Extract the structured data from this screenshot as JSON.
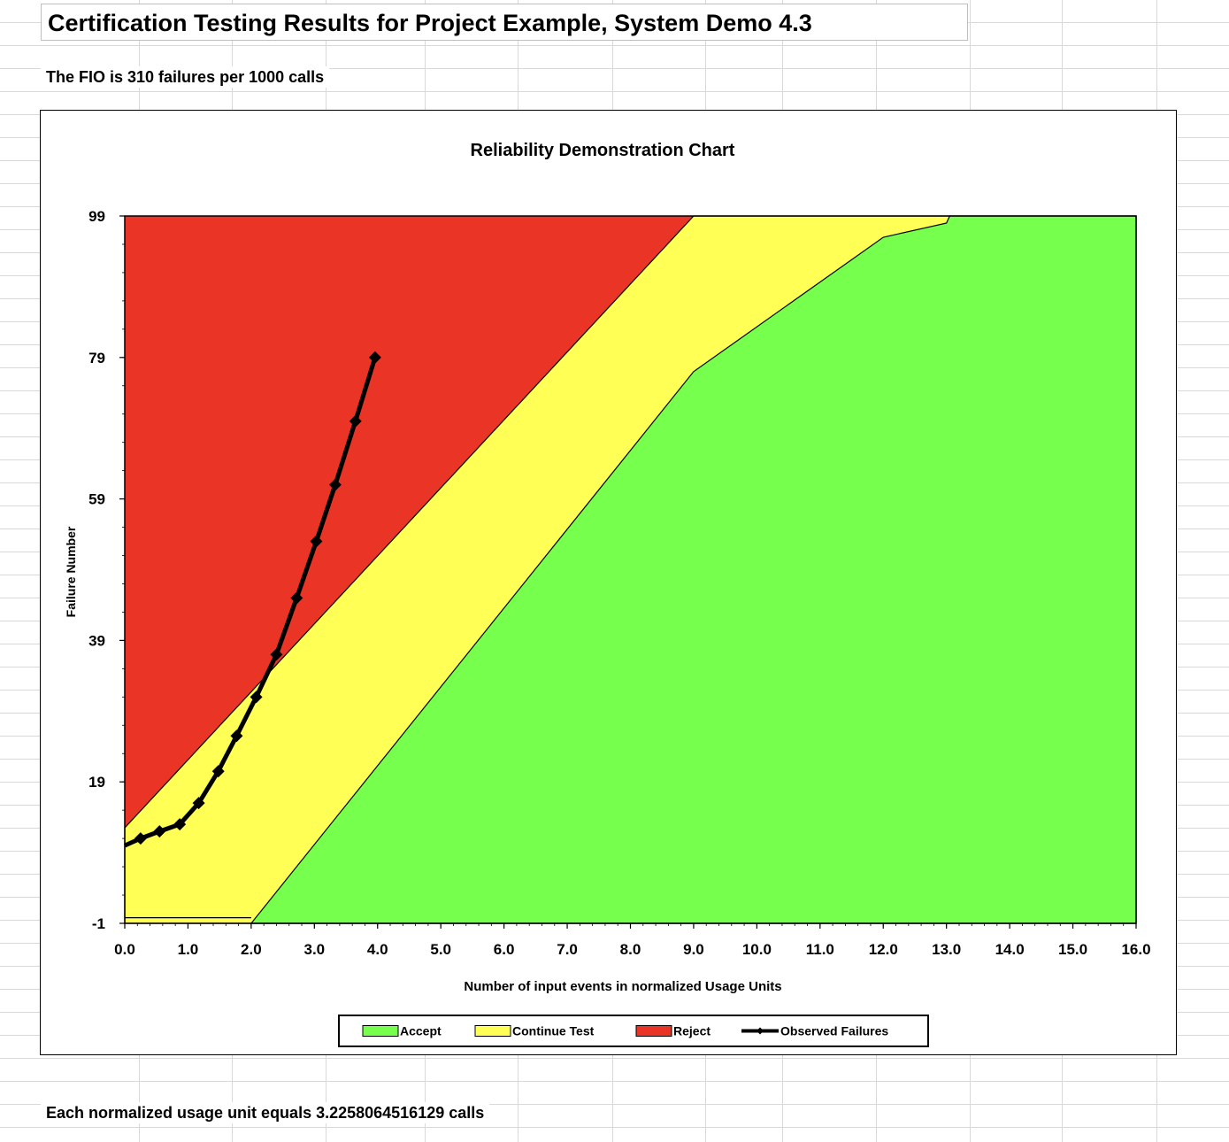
{
  "sheet": {
    "title": "Certification Testing Results for Project Example, System Demo 4.3",
    "fio_text": "The FIO is 310 failures per 1000 calls",
    "footer_text": "Each normalized usage unit equals 3.2258064516129 calls"
  },
  "chart_data": {
    "type": "area",
    "title": "Reliability Demonstration Chart",
    "xlabel": "Number of input events in normalized Usage Units",
    "ylabel": "Failure Number",
    "xlim": [
      0,
      16
    ],
    "ylim": [
      -1,
      99
    ],
    "x_ticks": [
      "0.0",
      "1.0",
      "2.0",
      "3.0",
      "4.0",
      "5.0",
      "6.0",
      "7.0",
      "8.0",
      "9.0",
      "10.0",
      "11.0",
      "12.0",
      "13.0",
      "14.0",
      "15.0",
      "16.0"
    ],
    "y_ticks": [
      "-1",
      "19",
      "39",
      "59",
      "79",
      "99"
    ],
    "legend_position": "bottom",
    "grid": false,
    "regions": [
      {
        "name": "Accept",
        "color": "#77ff4d",
        "boundary": [
          [
            2.0,
            -1
          ],
          [
            9.0,
            77
          ],
          [
            12.0,
            96
          ],
          [
            13.0,
            98
          ],
          [
            13.05,
            99
          ]
        ]
      },
      {
        "name": "Continue Test",
        "color": "#ffff55",
        "boundary": [
          [
            0.0,
            12.5
          ],
          [
            9.0,
            99
          ]
        ]
      },
      {
        "name": "Reject",
        "color": "#ea3526"
      }
    ],
    "series": [
      {
        "name": "Observed Failures",
        "color": "#000000",
        "x": [
          0.0,
          0.25,
          0.55,
          0.87,
          1.17,
          1.48,
          1.77,
          2.08,
          2.4,
          2.72,
          3.03,
          3.33,
          3.65,
          3.96
        ],
        "y": [
          10,
          11,
          12,
          13,
          16,
          20.5,
          25.5,
          31,
          37,
          45,
          53,
          61,
          70,
          79
        ]
      }
    ]
  }
}
